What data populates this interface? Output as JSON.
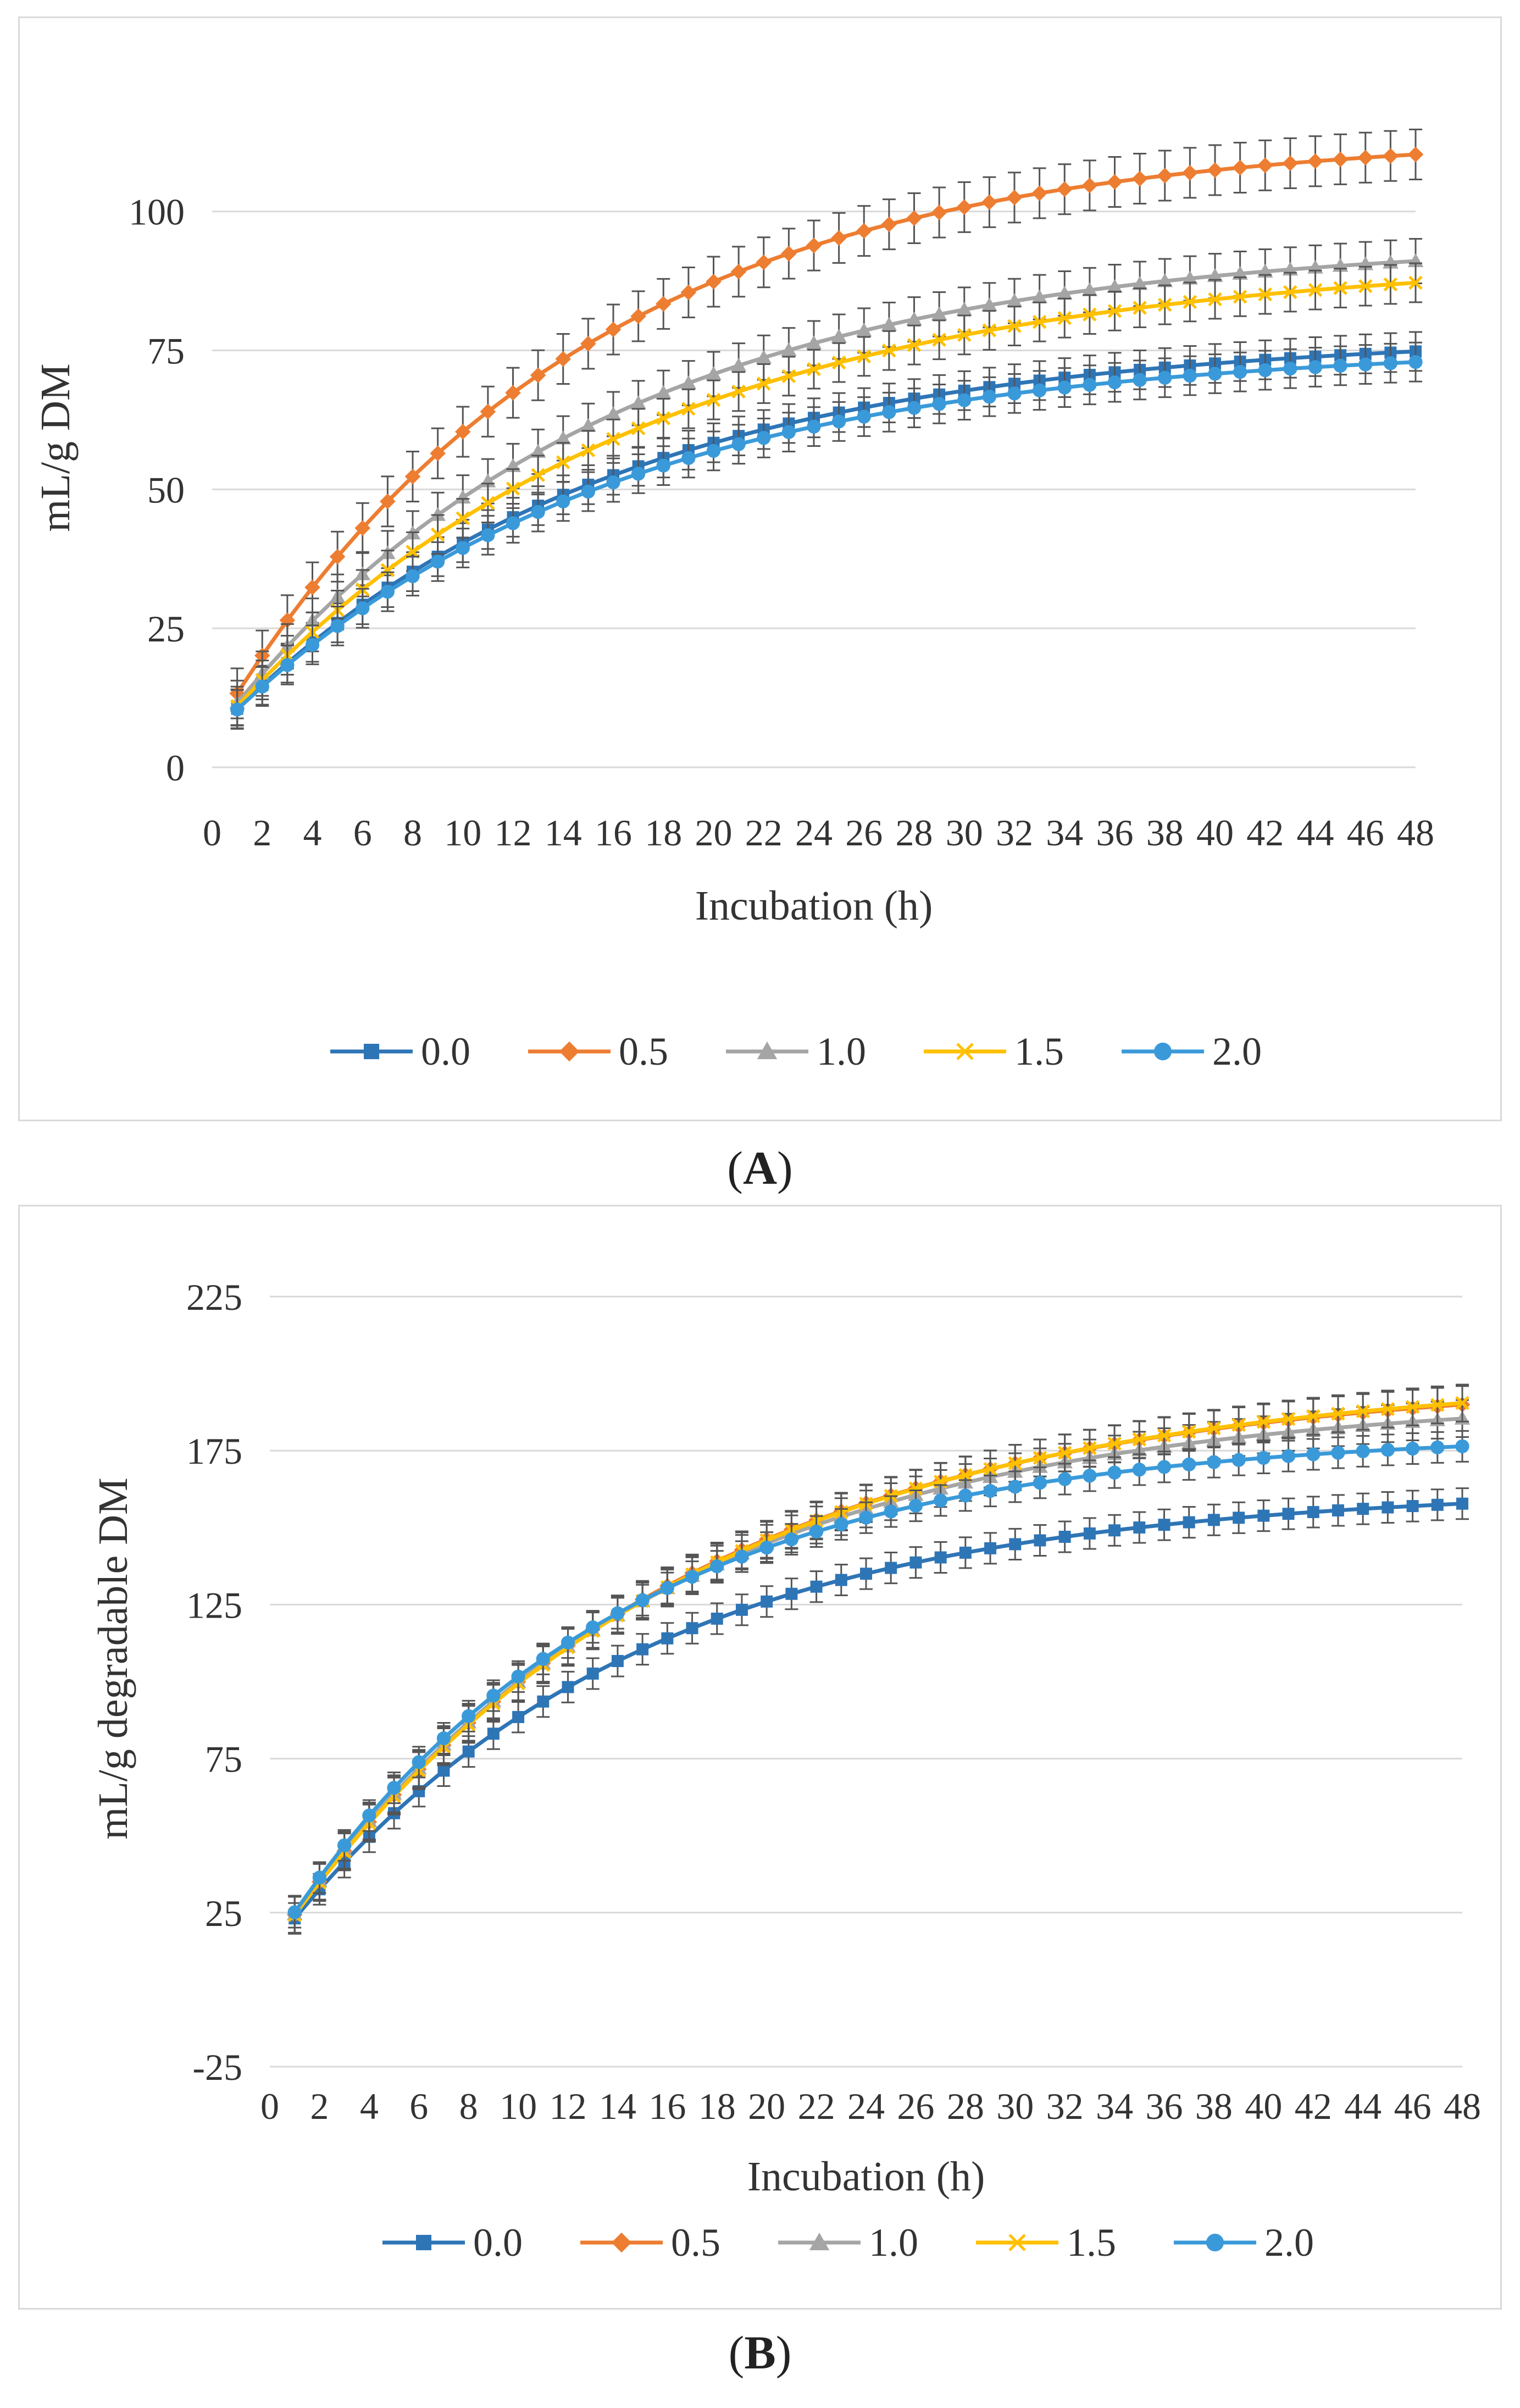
{
  "chart_data": [
    {
      "panel_label": "A",
      "type": "line",
      "title": "",
      "xlabel": "Incubation (h)",
      "ylabel": "mL/g DM",
      "x": [
        1,
        2,
        3,
        4,
        5,
        6,
        7,
        8,
        9,
        10,
        11,
        12,
        13,
        14,
        15,
        16,
        17,
        18,
        19,
        20,
        21,
        22,
        23,
        24,
        25,
        26,
        27,
        28,
        29,
        30,
        31,
        32,
        33,
        34,
        35,
        36,
        37,
        38,
        39,
        40,
        41,
        42,
        43,
        44,
        45,
        46,
        47,
        48
      ],
      "xticks": [
        "0",
        "2",
        "4",
        "6",
        "8",
        "10",
        "12",
        "14",
        "16",
        "18",
        "20",
        "22",
        "24",
        "26",
        "28",
        "30",
        "32",
        "34",
        "36",
        "38",
        "40",
        "42",
        "44",
        "46",
        "48"
      ],
      "ylim": [
        0,
        115
      ],
      "yticks": [
        "0",
        "25",
        "50",
        "75",
        "100"
      ],
      "grid": "horizontal",
      "legend_position": "bottom",
      "series": [
        {
          "name": "0.0",
          "color": "#2e75b6",
          "marker": "square",
          "a": 6,
          "b": 72,
          "k": 0.065,
          "err": 3.5
        },
        {
          "name": "0.5",
          "color": "#ed7d31",
          "marker": "diamond",
          "a": 6,
          "b": 108,
          "k": 0.07,
          "err": 4.5
        },
        {
          "name": "1.0",
          "color": "#a5a5a5",
          "marker": "triangle",
          "a": 6,
          "b": 89,
          "k": 0.065,
          "err": 4
        },
        {
          "name": "1.5",
          "color": "#ffc000",
          "marker": "x",
          "a": 6,
          "b": 86,
          "k": 0.06,
          "err": 3.5
        },
        {
          "name": "2.0",
          "color": "#3a9ad9",
          "marker": "circle",
          "a": 6,
          "b": 70,
          "k": 0.065,
          "err": 3.5
        }
      ]
    },
    {
      "panel_label": "B",
      "type": "line",
      "title": "",
      "xlabel": "Incubation (h)",
      "ylabel": "mL/g degradable DM",
      "x": [
        1,
        2,
        3,
        4,
        5,
        6,
        7,
        8,
        9,
        10,
        11,
        12,
        13,
        14,
        15,
        16,
        17,
        18,
        19,
        20,
        21,
        22,
        23,
        24,
        25,
        26,
        27,
        28,
        29,
        30,
        31,
        32,
        33,
        34,
        35,
        36,
        37,
        38,
        39,
        40,
        41,
        42,
        43,
        44,
        45,
        46,
        47,
        48
      ],
      "xticks": [
        "0",
        "2",
        "4",
        "6",
        "8",
        "10",
        "12",
        "14",
        "16",
        "18",
        "20",
        "22",
        "24",
        "26",
        "28",
        "30",
        "32",
        "34",
        "36",
        "38",
        "40",
        "42",
        "44",
        "46",
        "48"
      ],
      "ylim": [
        -25,
        240
      ],
      "yticks": [
        "-25",
        "25",
        "75",
        "125",
        "175",
        "225"
      ],
      "grid": "horizontal",
      "legend_position": "bottom",
      "series": [
        {
          "name": "0.0",
          "color": "#2e75b6",
          "marker": "square",
          "a": 13,
          "b": 150,
          "k": 0.07,
          "err": 5
        },
        {
          "name": "0.5",
          "color": "#ed7d31",
          "marker": "diamond",
          "a": 13,
          "b": 186,
          "k": 0.063,
          "err": 6
        },
        {
          "name": "1.0",
          "color": "#a5a5a5",
          "marker": "triangle",
          "a": 13,
          "b": 180,
          "k": 0.066,
          "err": 6
        },
        {
          "name": "1.5",
          "color": "#ffc000",
          "marker": "x",
          "a": 13,
          "b": 187,
          "k": 0.062,
          "err": 6
        },
        {
          "name": "2.0",
          "color": "#3a9ad9",
          "marker": "circle",
          "a": 13,
          "b": 168,
          "k": 0.075,
          "err": 5
        }
      ]
    }
  ],
  "captions": {
    "A": {
      "open": "(",
      "label": "A",
      "close": ")"
    },
    "B": {
      "open": "(",
      "label": "B",
      "close": ")"
    }
  }
}
